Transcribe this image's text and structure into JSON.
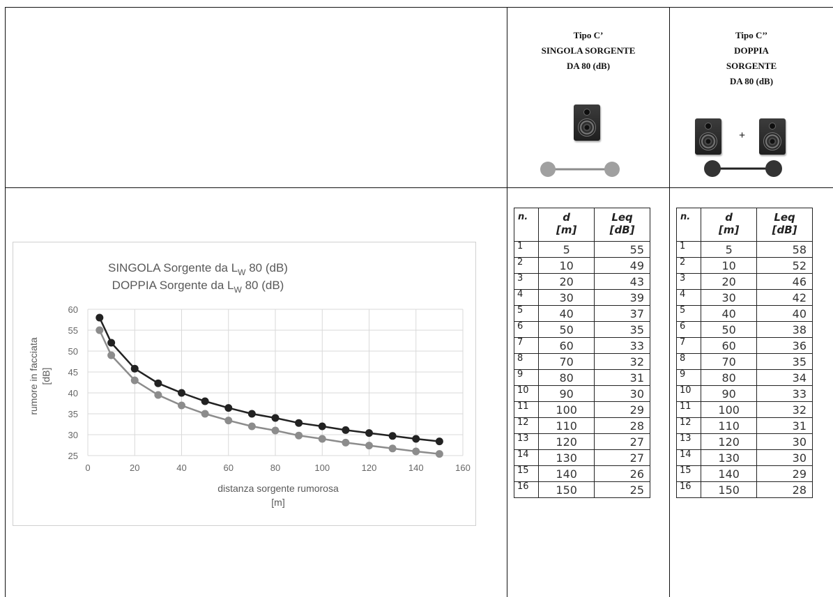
{
  "header": {
    "col1": {
      "line1": "Tipo C’",
      "line2": "SINGOLA SORGENTE",
      "line3": "DA 80 (dB)"
    },
    "col2": {
      "line1": "Tipo C’’",
      "line2": "DOPPIA",
      "line3": "SORGENTE",
      "line4": "DA 80 (dB)",
      "plus": "+"
    }
  },
  "colors": {
    "single": "#8c8c8c",
    "double": "#222222"
  },
  "tables": {
    "headers": {
      "n": "n.",
      "d": "d",
      "d_unit": "[m]",
      "leq": "Leq",
      "leq_unit": "[dB]"
    },
    "single": [
      {
        "n": "1",
        "d": "5",
        "leq": "55"
      },
      {
        "n": "2",
        "d": "10",
        "leq": "49"
      },
      {
        "n": "3",
        "d": "20",
        "leq": "43"
      },
      {
        "n": "4",
        "d": "30",
        "leq": "39"
      },
      {
        "n": "5",
        "d": "40",
        "leq": "37"
      },
      {
        "n": "6",
        "d": "50",
        "leq": "35"
      },
      {
        "n": "7",
        "d": "60",
        "leq": "33"
      },
      {
        "n": "8",
        "d": "70",
        "leq": "32"
      },
      {
        "n": "9",
        "d": "80",
        "leq": "31"
      },
      {
        "n": "10",
        "d": "90",
        "leq": "30"
      },
      {
        "n": "11",
        "d": "100",
        "leq": "29"
      },
      {
        "n": "12",
        "d": "110",
        "leq": "28"
      },
      {
        "n": "13",
        "d": "120",
        "leq": "27"
      },
      {
        "n": "14",
        "d": "130",
        "leq": "27"
      },
      {
        "n": "15",
        "d": "140",
        "leq": "26"
      },
      {
        "n": "16",
        "d": "150",
        "leq": "25"
      }
    ],
    "double": [
      {
        "n": "1",
        "d": "5",
        "leq": "58"
      },
      {
        "n": "2",
        "d": "10",
        "leq": "52"
      },
      {
        "n": "3",
        "d": "20",
        "leq": "46"
      },
      {
        "n": "4",
        "d": "30",
        "leq": "42"
      },
      {
        "n": "5",
        "d": "40",
        "leq": "40"
      },
      {
        "n": "6",
        "d": "50",
        "leq": "38"
      },
      {
        "n": "7",
        "d": "60",
        "leq": "36"
      },
      {
        "n": "8",
        "d": "70",
        "leq": "35"
      },
      {
        "n": "9",
        "d": "80",
        "leq": "34"
      },
      {
        "n": "10",
        "d": "90",
        "leq": "33"
      },
      {
        "n": "11",
        "d": "100",
        "leq": "32"
      },
      {
        "n": "12",
        "d": "110",
        "leq": "31"
      },
      {
        "n": "13",
        "d": "120",
        "leq": "30"
      },
      {
        "n": "14",
        "d": "130",
        "leq": "30"
      },
      {
        "n": "15",
        "d": "140",
        "leq": "29"
      },
      {
        "n": "16",
        "d": "150",
        "leq": "28"
      }
    ]
  },
  "chart_data": {
    "type": "line",
    "title_line1": "SINGOLA Sorgente da L",
    "title_line2": "DOPPIA Sorgente da L",
    "title_sub": "W",
    "title_tail": " 80 (dB)",
    "xlabel_line1": "distanza sorgente rumorosa",
    "xlabel_line2": "[m]",
    "ylabel_line1": "rumore in facciata",
    "ylabel_line2": "[dB]",
    "xlim": [
      0,
      160
    ],
    "ylim": [
      25,
      60
    ],
    "xticks": [
      "0",
      "20",
      "40",
      "60",
      "80",
      "100",
      "120",
      "140",
      "160"
    ],
    "yticks": [
      "25",
      "30",
      "35",
      "40",
      "45",
      "50",
      "55",
      "60"
    ],
    "grid": true,
    "x": [
      5,
      10,
      20,
      30,
      40,
      50,
      60,
      70,
      80,
      90,
      100,
      110,
      120,
      130,
      140,
      150
    ],
    "series": [
      {
        "key": "single",
        "color": "#8c8c8c",
        "values": [
          55,
          49,
          43,
          39.5,
          37,
          35,
          33.4,
          32,
          31,
          29.8,
          29,
          28.1,
          27.4,
          26.7,
          26,
          25.4
        ]
      },
      {
        "key": "double",
        "color": "#222222",
        "values": [
          58,
          52,
          45.8,
          42.3,
          40,
          38,
          36.4,
          35,
          34,
          32.8,
          32,
          31.1,
          30.4,
          29.7,
          29,
          28.4
        ]
      }
    ]
  }
}
